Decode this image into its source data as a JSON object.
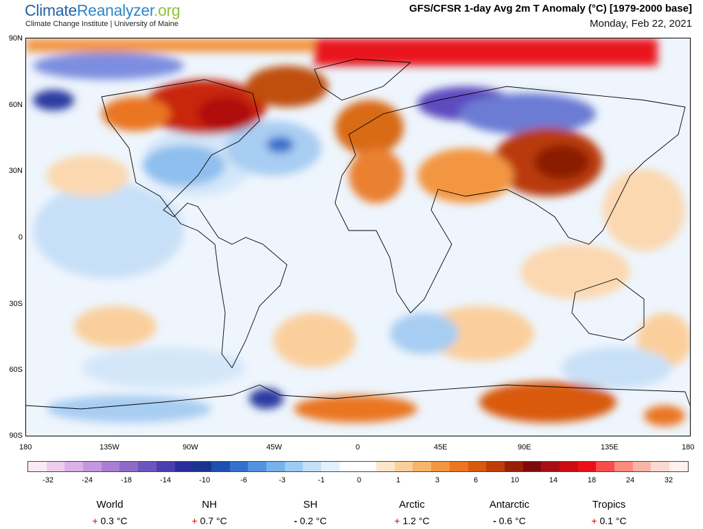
{
  "header": {
    "logo_part1": "Climate",
    "logo_part2": "Reanalyzer",
    "logo_part3": ".org",
    "subtitle": "Climate Change Institute | University of Maine",
    "title": "GFS/CFSR 1-day Avg 2m T Anomaly (°C) [1979-2000 base]",
    "date": "Monday, Feb 22, 2021"
  },
  "map": {
    "lat_labels": [
      "90N",
      "60N",
      "30N",
      "0",
      "30S",
      "60S",
      "90S"
    ],
    "lon_labels": [
      "180",
      "135W",
      "90W",
      "45W",
      "0",
      "45E",
      "90E",
      "135E",
      "180"
    ]
  },
  "colorbar": {
    "labels": [
      "-32",
      "-24",
      "-18",
      "-14",
      "-10",
      "-6",
      "-3",
      "-1",
      "0",
      "1",
      "3",
      "6",
      "10",
      "14",
      "18",
      "24",
      "32"
    ],
    "colors": [
      "#fbe9f6",
      "#efcdef",
      "#dcb0e8",
      "#c497e0",
      "#a97fd4",
      "#8e6bc7",
      "#6c56bb",
      "#4a3fae",
      "#2a2e9c",
      "#18358e",
      "#1f4fb0",
      "#3470cc",
      "#5392e0",
      "#77b2ec",
      "#9ccbf3",
      "#c3e0f8",
      "#e3f0fb",
      "#ffffff",
      "#ffffff",
      "#fde6cc",
      "#fbcf9c",
      "#f8b46c",
      "#f39643",
      "#ea7620",
      "#d95a0e",
      "#bd3e08",
      "#982006",
      "#7e0a0a",
      "#a50f15",
      "#cc0b12",
      "#ec0f14",
      "#fb4c4c",
      "#fb8b7c",
      "#fab4a6",
      "#fcd9d0",
      "#fff0ee"
    ]
  },
  "stats": [
    {
      "name": "World",
      "sign": "+",
      "value": "0.3 °C"
    },
    {
      "name": "NH",
      "sign": "+",
      "value": "0.7 °C"
    },
    {
      "name": "SH",
      "sign": "-",
      "value": "0.2 °C"
    },
    {
      "name": "Arctic",
      "sign": "+",
      "value": "1.2 °C"
    },
    {
      "name": "Antarctic",
      "sign": "-",
      "value": "0.6 °C"
    },
    {
      "name": "Tropics",
      "sign": "+",
      "value": "0.1 °C"
    }
  ]
}
